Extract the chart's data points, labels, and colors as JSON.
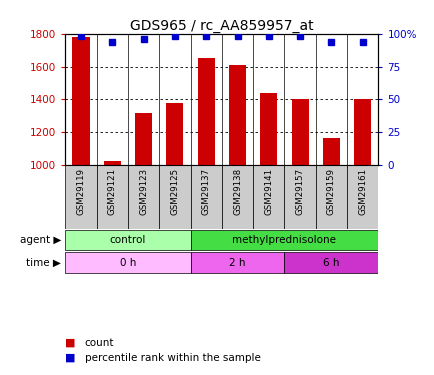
{
  "title": "GDS965 / rc_AA859957_at",
  "samples": [
    "GSM29119",
    "GSM29121",
    "GSM29123",
    "GSM29125",
    "GSM29137",
    "GSM29138",
    "GSM29141",
    "GSM29157",
    "GSM29159",
    "GSM29161"
  ],
  "counts": [
    1780,
    1025,
    1315,
    1375,
    1655,
    1610,
    1440,
    1405,
    1165,
    1400
  ],
  "percentiles": [
    98,
    94,
    96,
    98,
    98,
    98,
    98,
    98,
    94,
    94
  ],
  "ylim_left": [
    1000,
    1800
  ],
  "ylim_right": [
    0,
    100
  ],
  "yticks_left": [
    1000,
    1200,
    1400,
    1600,
    1800
  ],
  "yticks_right": [
    0,
    25,
    50,
    75,
    100
  ],
  "ytick_right_labels": [
    "0",
    "25",
    "50",
    "75",
    "100%"
  ],
  "bar_color": "#cc0000",
  "dot_color": "#0000cc",
  "grid_color": "#000000",
  "agent_control_color": "#aaffaa",
  "agent_methyl_color": "#44dd44",
  "time_0h_color": "#ffbbff",
  "time_2h_color": "#ee66ee",
  "time_6h_color": "#cc33cc",
  "label_bg_color": "#cccccc",
  "agent_groups": [
    {
      "label": "control",
      "start": 0,
      "end": 4
    },
    {
      "label": "methylprednisolone",
      "start": 4,
      "end": 10
    }
  ],
  "time_groups": [
    {
      "label": "0 h",
      "start": 0,
      "end": 4
    },
    {
      "label": "2 h",
      "start": 4,
      "end": 7
    },
    {
      "label": "6 h",
      "start": 7,
      "end": 10
    }
  ],
  "legend_count_label": "count",
  "legend_pct_label": "percentile rank within the sample",
  "xlabel_agent": "agent",
  "xlabel_time": "time"
}
